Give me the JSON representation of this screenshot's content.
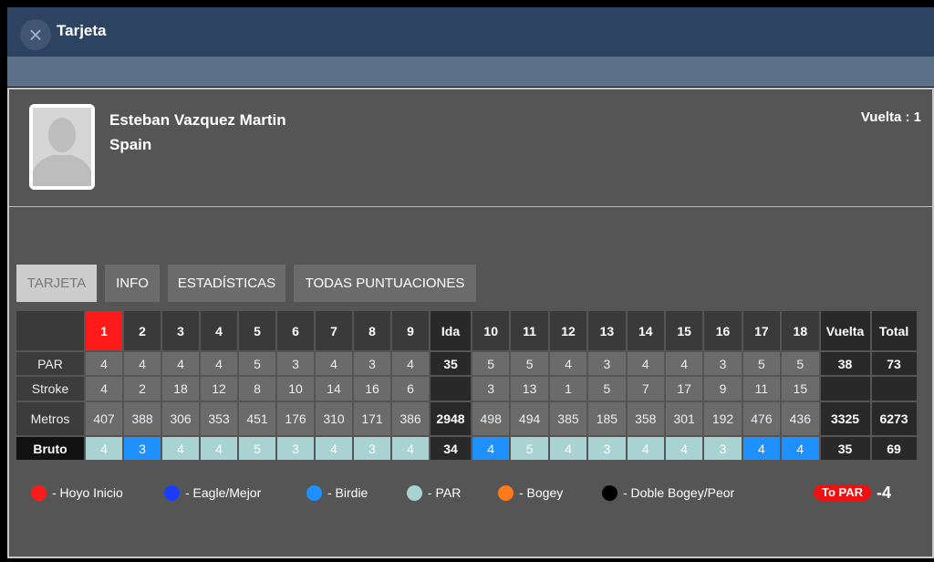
{
  "header": {
    "title": "Tarjeta"
  },
  "player": {
    "name": "Esteban Vazquez Martin",
    "country": "Spain",
    "round": "Vuelta : 1"
  },
  "tabs": [
    "TARJETA",
    "INFO",
    "ESTADÍSTICAS",
    "TODAS PUNTUACIONES"
  ],
  "table": {
    "columns": {
      "holes": [
        1,
        2,
        3,
        4,
        5,
        6,
        7,
        8,
        9,
        10,
        11,
        12,
        13,
        14,
        15,
        16,
        17,
        18
      ],
      "ida": "Ida",
      "vuelta": "Vuelta",
      "total": "Total"
    },
    "rows": [
      {
        "label": "PAR",
        "holes": [
          4,
          4,
          4,
          4,
          5,
          3,
          4,
          3,
          4,
          5,
          5,
          4,
          3,
          4,
          4,
          3,
          5,
          5
        ],
        "ida": 35,
        "vuelta": 38,
        "total": 73
      },
      {
        "label": "Stroke",
        "holes": [
          4,
          2,
          18,
          12,
          8,
          10,
          14,
          16,
          6,
          3,
          13,
          1,
          5,
          7,
          17,
          9,
          11,
          15
        ]
      },
      {
        "label": "Metros",
        "holes": [
          407,
          388,
          306,
          353,
          451,
          176,
          310,
          171,
          386,
          498,
          494,
          385,
          185,
          358,
          301,
          192,
          476,
          436
        ],
        "ida": 2948,
        "vuelta": 3325,
        "total": 6273
      },
      {
        "label": "Bruto",
        "holes": [
          4,
          3,
          4,
          4,
          5,
          3,
          4,
          3,
          4,
          4,
          5,
          4,
          3,
          4,
          4,
          3,
          4,
          4
        ],
        "ida": 34,
        "vuelta": 35,
        "total": 69
      }
    ]
  },
  "legend": [
    {
      "label": "- Hoyo Inicio",
      "color": "#ff1a1a"
    },
    {
      "label": "- Eagle/Mejor",
      "color": "#1a3cff"
    },
    {
      "label": "- Birdie",
      "color": "#1e90ff"
    },
    {
      "label": "- PAR",
      "color": "#a9d3d3"
    },
    {
      "label": "- Bogey",
      "color": "#ff7a1a"
    },
    {
      "label": "- Doble Bogey/Peor",
      "color": "#000000"
    }
  ],
  "to_par": {
    "label": "To PAR",
    "value": -4
  }
}
